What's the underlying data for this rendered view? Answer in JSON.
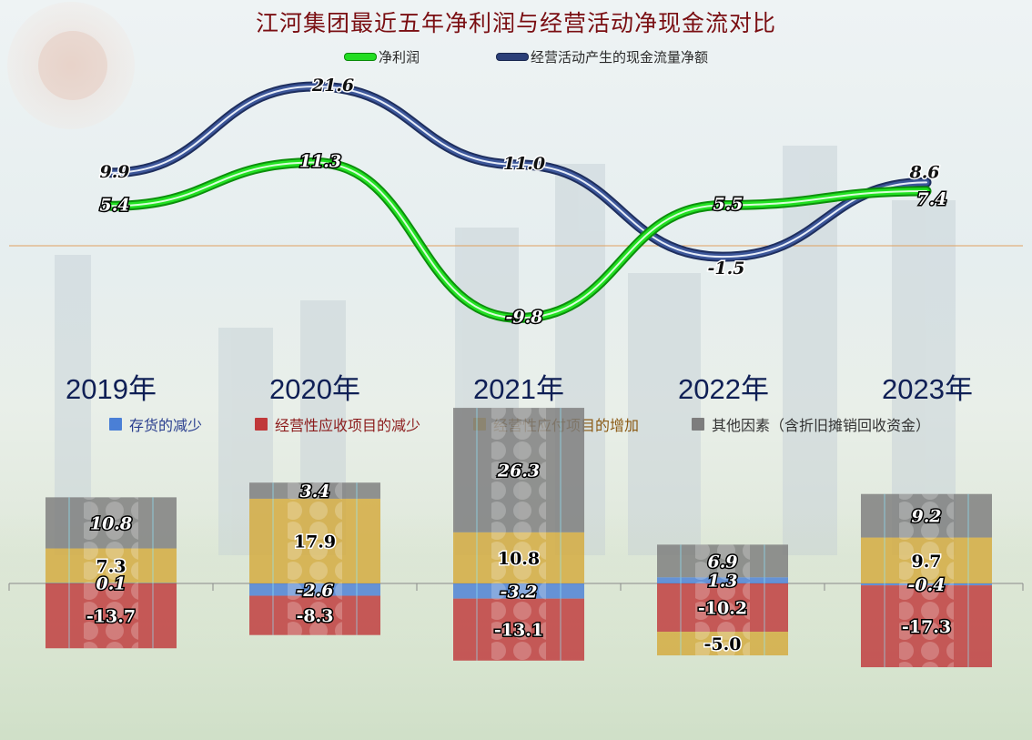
{
  "title": "江河集团最近五年净利润与经营活动净现金流对比",
  "line_legend": [
    {
      "label": "净利润",
      "color": "#22dd22"
    },
    {
      "label": "经营活动产生的现金流量净额",
      "color": "#2b3f78"
    }
  ],
  "bar_legend": [
    {
      "label": "存货的减少",
      "color": "#4a7fd6",
      "text_color": "#2a3f8f"
    },
    {
      "label": "经营性应收项目的减少",
      "color": "#c0383a",
      "text_color": "#8b1a1a"
    },
    {
      "label": "经营性应付项目的增加",
      "color": "#d4a93c",
      "text_color": "#8b5a14"
    },
    {
      "label": "其他因素（含折旧摊销回收资金）",
      "color": "#7d7d7d",
      "text_color": "#333333"
    }
  ],
  "years": [
    "2019年",
    "2020年",
    "2021年",
    "2022年",
    "2023年"
  ],
  "chart_data": [
    {
      "type": "line",
      "title": "江河集团最近五年净利润与经营活动净现金流对比",
      "categories": [
        "2019",
        "2020",
        "2021",
        "2022",
        "2023"
      ],
      "series": [
        {
          "name": "净利润",
          "values": [
            5.4,
            11.3,
            -9.8,
            5.5,
            7.4
          ],
          "color": "#22dd22"
        },
        {
          "name": "经营活动产生的现金流量净额",
          "values": [
            9.9,
            21.6,
            11.0,
            -1.5,
            8.6
          ],
          "color": "#2b3f78"
        }
      ],
      "value_labels": {
        "净利润": [
          "5.4",
          "11.3",
          "-9.8",
          "5.5",
          "7.4"
        ],
        "经营活动产生的现金流量净额": [
          "9.9",
          "21.6",
          "11.0",
          "-1.5",
          "8.6"
        ]
      },
      "legend": "top-center"
    },
    {
      "type": "bar",
      "stacked": true,
      "categories": [
        "2019年",
        "2020年",
        "2021年",
        "2022年",
        "2023年"
      ],
      "series": [
        {
          "name": "存货的减少",
          "values": [
            0.1,
            -2.6,
            -3.2,
            1.3,
            -0.4
          ],
          "labels": [
            "0.1",
            "-2.6",
            "-3.2",
            "1.3",
            "-0.4"
          ],
          "color": "#4a7fd6"
        },
        {
          "name": "经营性应收项目的减少",
          "values": [
            -13.7,
            -8.3,
            -13.1,
            -10.2,
            -17.3
          ],
          "labels": [
            "-13.7",
            "-8.3",
            "-13.1",
            "-10.2",
            "-17.3"
          ],
          "color": "#c0383a"
        },
        {
          "name": "经营性应付项目的增加",
          "values": [
            7.3,
            17.9,
            10.8,
            -5.0,
            9.7
          ],
          "labels": [
            "7.3",
            "17.9",
            "10.8",
            "-5.0",
            "9.7"
          ],
          "color": "#d4a93c"
        },
        {
          "name": "其他因素（含折旧摊销回收资金）",
          "values": [
            10.8,
            3.4,
            26.3,
            6.9,
            9.2
          ],
          "labels": [
            "10.8",
            "3.4",
            "26.3",
            "6.9",
            "9.2"
          ],
          "color": "#7d7d7d"
        }
      ],
      "legend": "top"
    }
  ]
}
